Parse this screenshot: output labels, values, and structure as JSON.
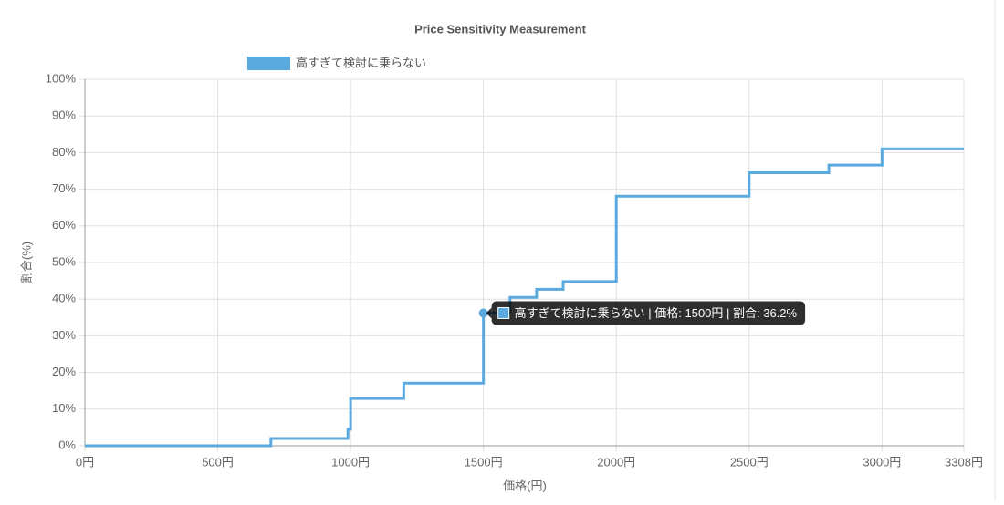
{
  "chart_data": {
    "type": "line",
    "stepped": true,
    "title": "Price Sensitivity Measurement",
    "x_label": "価格(円)",
    "y_label": "割合(%)",
    "x": [
      0,
      700,
      990,
      1000,
      1200,
      1500,
      1600,
      1700,
      1800,
      2000,
      2500,
      2800,
      3000,
      3308
    ],
    "series": [
      {
        "name": "高すぎて検討に乗らない",
        "color": "#5aaadf",
        "values": [
          0,
          2,
          4.5,
          12.9,
          17.1,
          36.2,
          40.5,
          42.7,
          44.8,
          68.1,
          74.5,
          76.6,
          81,
          81
        ]
      }
    ],
    "xlim": [
      0,
      3308
    ],
    "xticks": [
      {
        "value": 0,
        "label": "0円"
      },
      {
        "value": 500,
        "label": "500円"
      },
      {
        "value": 1000,
        "label": "1000円"
      },
      {
        "value": 1500,
        "label": "1500円"
      },
      {
        "value": 2000,
        "label": "2000円"
      },
      {
        "value": 2500,
        "label": "2500円"
      },
      {
        "value": 3000,
        "label": "3000円"
      },
      {
        "value": 3308,
        "label": "3308円"
      }
    ],
    "ylim": [
      0,
      100
    ],
    "yticks": [
      {
        "value": 0,
        "label": "0%"
      },
      {
        "value": 10,
        "label": "10%"
      },
      {
        "value": 20,
        "label": "20%"
      },
      {
        "value": 30,
        "label": "30%"
      },
      {
        "value": 40,
        "label": "40%"
      },
      {
        "value": 50,
        "label": "50%"
      },
      {
        "value": 60,
        "label": "60%"
      },
      {
        "value": 70,
        "label": "70%"
      },
      {
        "value": 80,
        "label": "80%"
      },
      {
        "value": 90,
        "label": "90%"
      },
      {
        "value": 100,
        "label": "100%"
      }
    ],
    "grid": true,
    "legend": "top",
    "tooltip": {
      "index": 5,
      "text": "高すぎて検討に乗らない | 価格: 1500円 | 割合: 36.2%"
    }
  }
}
